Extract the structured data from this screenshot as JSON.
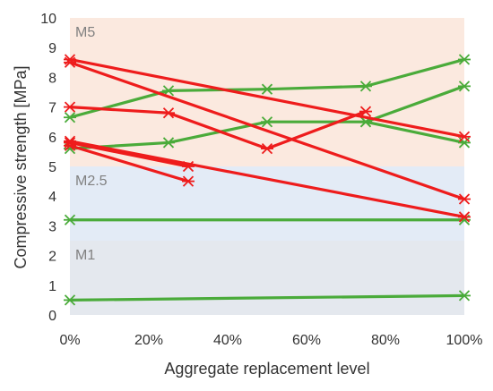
{
  "chart_data": {
    "type": "line",
    "xlabel": "Aggregate replacement level",
    "ylabel": "Compressive strength [MPa]",
    "xlim": [
      0,
      100
    ],
    "ylim": [
      0,
      10
    ],
    "x_ticks": [
      "0%",
      "20%",
      "40%",
      "60%",
      "80%",
      "100%"
    ],
    "y_ticks": [
      "0",
      "1",
      "2",
      "3",
      "4",
      "5",
      "6",
      "7",
      "8",
      "9",
      "10"
    ],
    "grid": "none",
    "bands": [
      {
        "label": "M1",
        "from": 0,
        "to": 2.5,
        "color": "#e4e8ee"
      },
      {
        "label": "M2.5",
        "from": 2.5,
        "to": 5,
        "color": "#e3ebf6"
      },
      {
        "label": "M5",
        "from": 5,
        "to": 10,
        "color": "#fbe9df"
      }
    ],
    "colors": {
      "red": "#ee1c1c",
      "green": "#4aab3a"
    },
    "series": [
      {
        "color": "red",
        "points": [
          [
            0,
            8.6
          ],
          [
            100,
            6.0
          ]
        ]
      },
      {
        "color": "red",
        "points": [
          [
            0,
            8.5
          ],
          [
            100,
            3.9
          ]
        ]
      },
      {
        "color": "red",
        "points": [
          [
            0,
            7.0
          ],
          [
            25,
            6.8
          ],
          [
            50,
            5.6
          ],
          [
            75,
            6.85
          ]
        ]
      },
      {
        "color": "red",
        "points": [
          [
            0,
            5.8
          ],
          [
            30,
            5.0
          ]
        ]
      },
      {
        "color": "red",
        "points": [
          [
            0,
            5.7
          ],
          [
            30,
            4.5
          ]
        ]
      },
      {
        "color": "red",
        "points": [
          [
            0,
            5.85
          ],
          [
            100,
            3.3
          ]
        ]
      },
      {
        "color": "green",
        "points": [
          [
            0,
            6.65
          ],
          [
            25,
            7.55
          ],
          [
            50,
            7.6
          ],
          [
            75,
            7.7
          ],
          [
            100,
            8.6
          ]
        ]
      },
      {
        "color": "green",
        "points": [
          [
            0,
            5.6
          ],
          [
            25,
            5.8
          ],
          [
            50,
            6.5
          ],
          [
            75,
            6.5
          ],
          [
            100,
            7.7
          ]
        ]
      },
      {
        "color": "green",
        "points": [
          [
            75,
            6.5
          ],
          [
            100,
            5.8
          ]
        ]
      },
      {
        "color": "green",
        "points": [
          [
            0,
            3.2
          ],
          [
            100,
            3.2
          ]
        ]
      },
      {
        "color": "green",
        "points": [
          [
            0,
            0.5
          ],
          [
            100,
            0.65
          ]
        ]
      }
    ]
  }
}
